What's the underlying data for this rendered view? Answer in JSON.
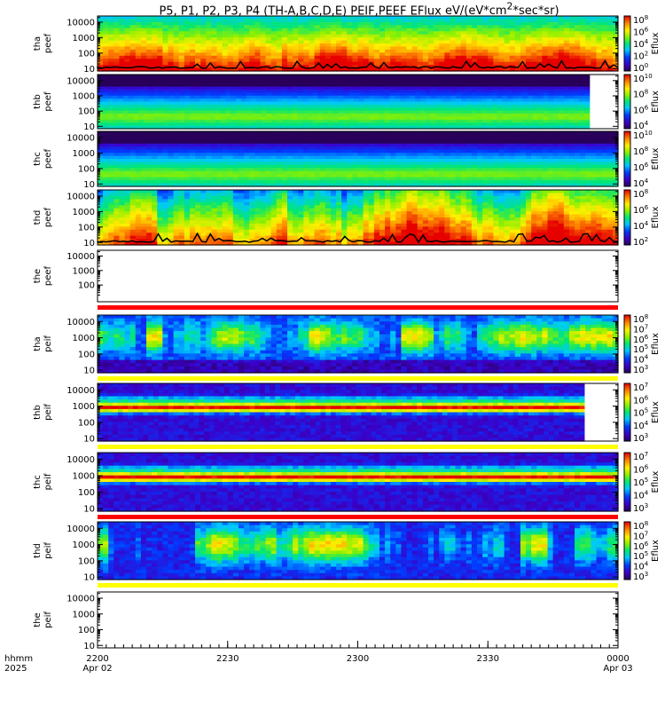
{
  "chart_data": {
    "type": "heatmap",
    "title": "P5, P1, P2, P3, P4 (TH-A,B,C,D,E) PEIF,PEEF EFlux",
    "units_prefix": "eV/(eV*cm",
    "units_sup": "2",
    "units_suffix": "*sec*sr)",
    "x_axis": {
      "ticks": [
        "2200",
        "2230",
        "2300",
        "2330",
        "0000"
      ],
      "dates": [
        "Apr 02",
        "",
        "",
        "",
        "Apr 03"
      ],
      "row_label_top": "hhmm",
      "row_label_bottom": "2025"
    },
    "panels": [
      {
        "probe": "tha",
        "species": "peef",
        "yticks": [
          "10",
          "100",
          "1000",
          "10000"
        ],
        "cbar_ticks": [
          "10^0",
          "10^2",
          "10^4",
          "10^6",
          "10^8"
        ],
        "cbar_label": "Eflux",
        "pattern": "electron-active",
        "low_energy_line": true,
        "band_below": null
      },
      {
        "probe": "thb",
        "species": "peef",
        "yticks": [
          "10",
          "100",
          "1000",
          "10000"
        ],
        "cbar_ticks": [
          "10^4",
          "10^6",
          "10^8",
          "10^10"
        ],
        "cbar_label": "Eflux",
        "pattern": "electron-quiet",
        "end_fraction": 0.945,
        "low_energy_line": false,
        "band_below": null
      },
      {
        "probe": "thc",
        "species": "peef",
        "yticks": [
          "10",
          "100",
          "1000",
          "10000"
        ],
        "cbar_ticks": [
          "10^4",
          "10^6",
          "10^8",
          "10^10"
        ],
        "cbar_label": "Eflux",
        "pattern": "electron-quiet",
        "low_energy_line": false,
        "band_below": null
      },
      {
        "probe": "thd",
        "species": "peef",
        "yticks": [
          "10",
          "100",
          "1000",
          "10000"
        ],
        "cbar_ticks": [
          "10^2",
          "10^4",
          "10^6",
          "10^8"
        ],
        "cbar_label": "Eflux",
        "pattern": "electron-mixed",
        "low_energy_line": true,
        "band_below": null
      },
      {
        "probe": "the",
        "species": "peef",
        "yticks": [
          "100",
          "1000",
          "10000"
        ],
        "cbar_ticks": [],
        "cbar_label": "",
        "pattern": "empty",
        "low_energy_line": false,
        "band_below": "red"
      },
      {
        "probe": "tha",
        "species": "peif",
        "yticks": [
          "10",
          "100",
          "1000",
          "10000"
        ],
        "cbar_ticks": [
          "10^3",
          "10^4",
          "10^5",
          "10^6",
          "10^7",
          "10^8"
        ],
        "cbar_label": "Eflux",
        "pattern": "ion-active",
        "low_energy_line": false,
        "band_below": "yellow"
      },
      {
        "probe": "thb",
        "species": "peif",
        "yticks": [
          "10",
          "100",
          "1000",
          "10000"
        ],
        "cbar_ticks": [
          "10^3",
          "10^4",
          "10^5",
          "10^6",
          "10^7"
        ],
        "cbar_label": "Eflux",
        "pattern": "ion-quiet",
        "end_fraction": 0.935,
        "low_energy_line": false,
        "band_below": "yellow"
      },
      {
        "probe": "thc",
        "species": "peif",
        "yticks": [
          "10",
          "100",
          "1000",
          "10000"
        ],
        "cbar_ticks": [
          "10^3",
          "10^4",
          "10^5",
          "10^6",
          "10^7"
        ],
        "cbar_label": "Eflux",
        "pattern": "ion-quiet",
        "low_energy_line": false,
        "band_below": "red"
      },
      {
        "probe": "thd",
        "species": "peif",
        "yticks": [
          "10",
          "100",
          "1000",
          "10000"
        ],
        "cbar_ticks": [
          "10^3",
          "10^4",
          "10^5",
          "10^6",
          "10^7",
          "10^8"
        ],
        "cbar_label": "Eflux",
        "pattern": "ion-mixed",
        "low_energy_line": false,
        "band_below": "yellow"
      },
      {
        "probe": "the",
        "species": "peif",
        "yticks": [
          "10",
          "100",
          "1000",
          "10000"
        ],
        "cbar_ticks": [],
        "cbar_label": "",
        "pattern": "empty",
        "low_energy_line": false,
        "band_below": null
      }
    ]
  }
}
